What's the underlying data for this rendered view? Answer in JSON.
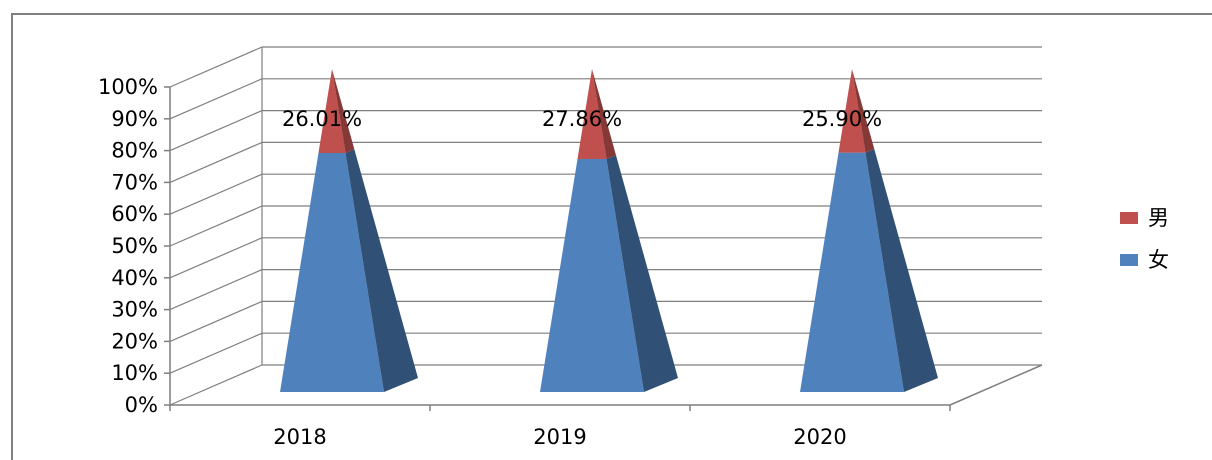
{
  "chart_data": {
    "type": "bar",
    "shape": "3d-pyramid",
    "stacked_percent": true,
    "categories": [
      "2018",
      "2019",
      "2020"
    ],
    "series": [
      {
        "name": "女",
        "values": [
          73.99,
          72.14,
          74.1
        ],
        "color": "#4f81bd"
      },
      {
        "name": "男",
        "values": [
          26.01,
          27.86,
          25.9
        ],
        "color": "#c0504d"
      }
    ],
    "data_labels": [
      "26.01%",
      "27.86%",
      "25.90%"
    ],
    "y_ticks": [
      "0%",
      "10%",
      "20%",
      "30%",
      "40%",
      "50%",
      "60%",
      "70%",
      "80%",
      "90%",
      "100%"
    ],
    "ylim": [
      0,
      100
    ],
    "grid": true,
    "legend": {
      "position": "right",
      "order": [
        "男",
        "女"
      ]
    },
    "title": "",
    "xlabel": "",
    "ylabel": ""
  }
}
